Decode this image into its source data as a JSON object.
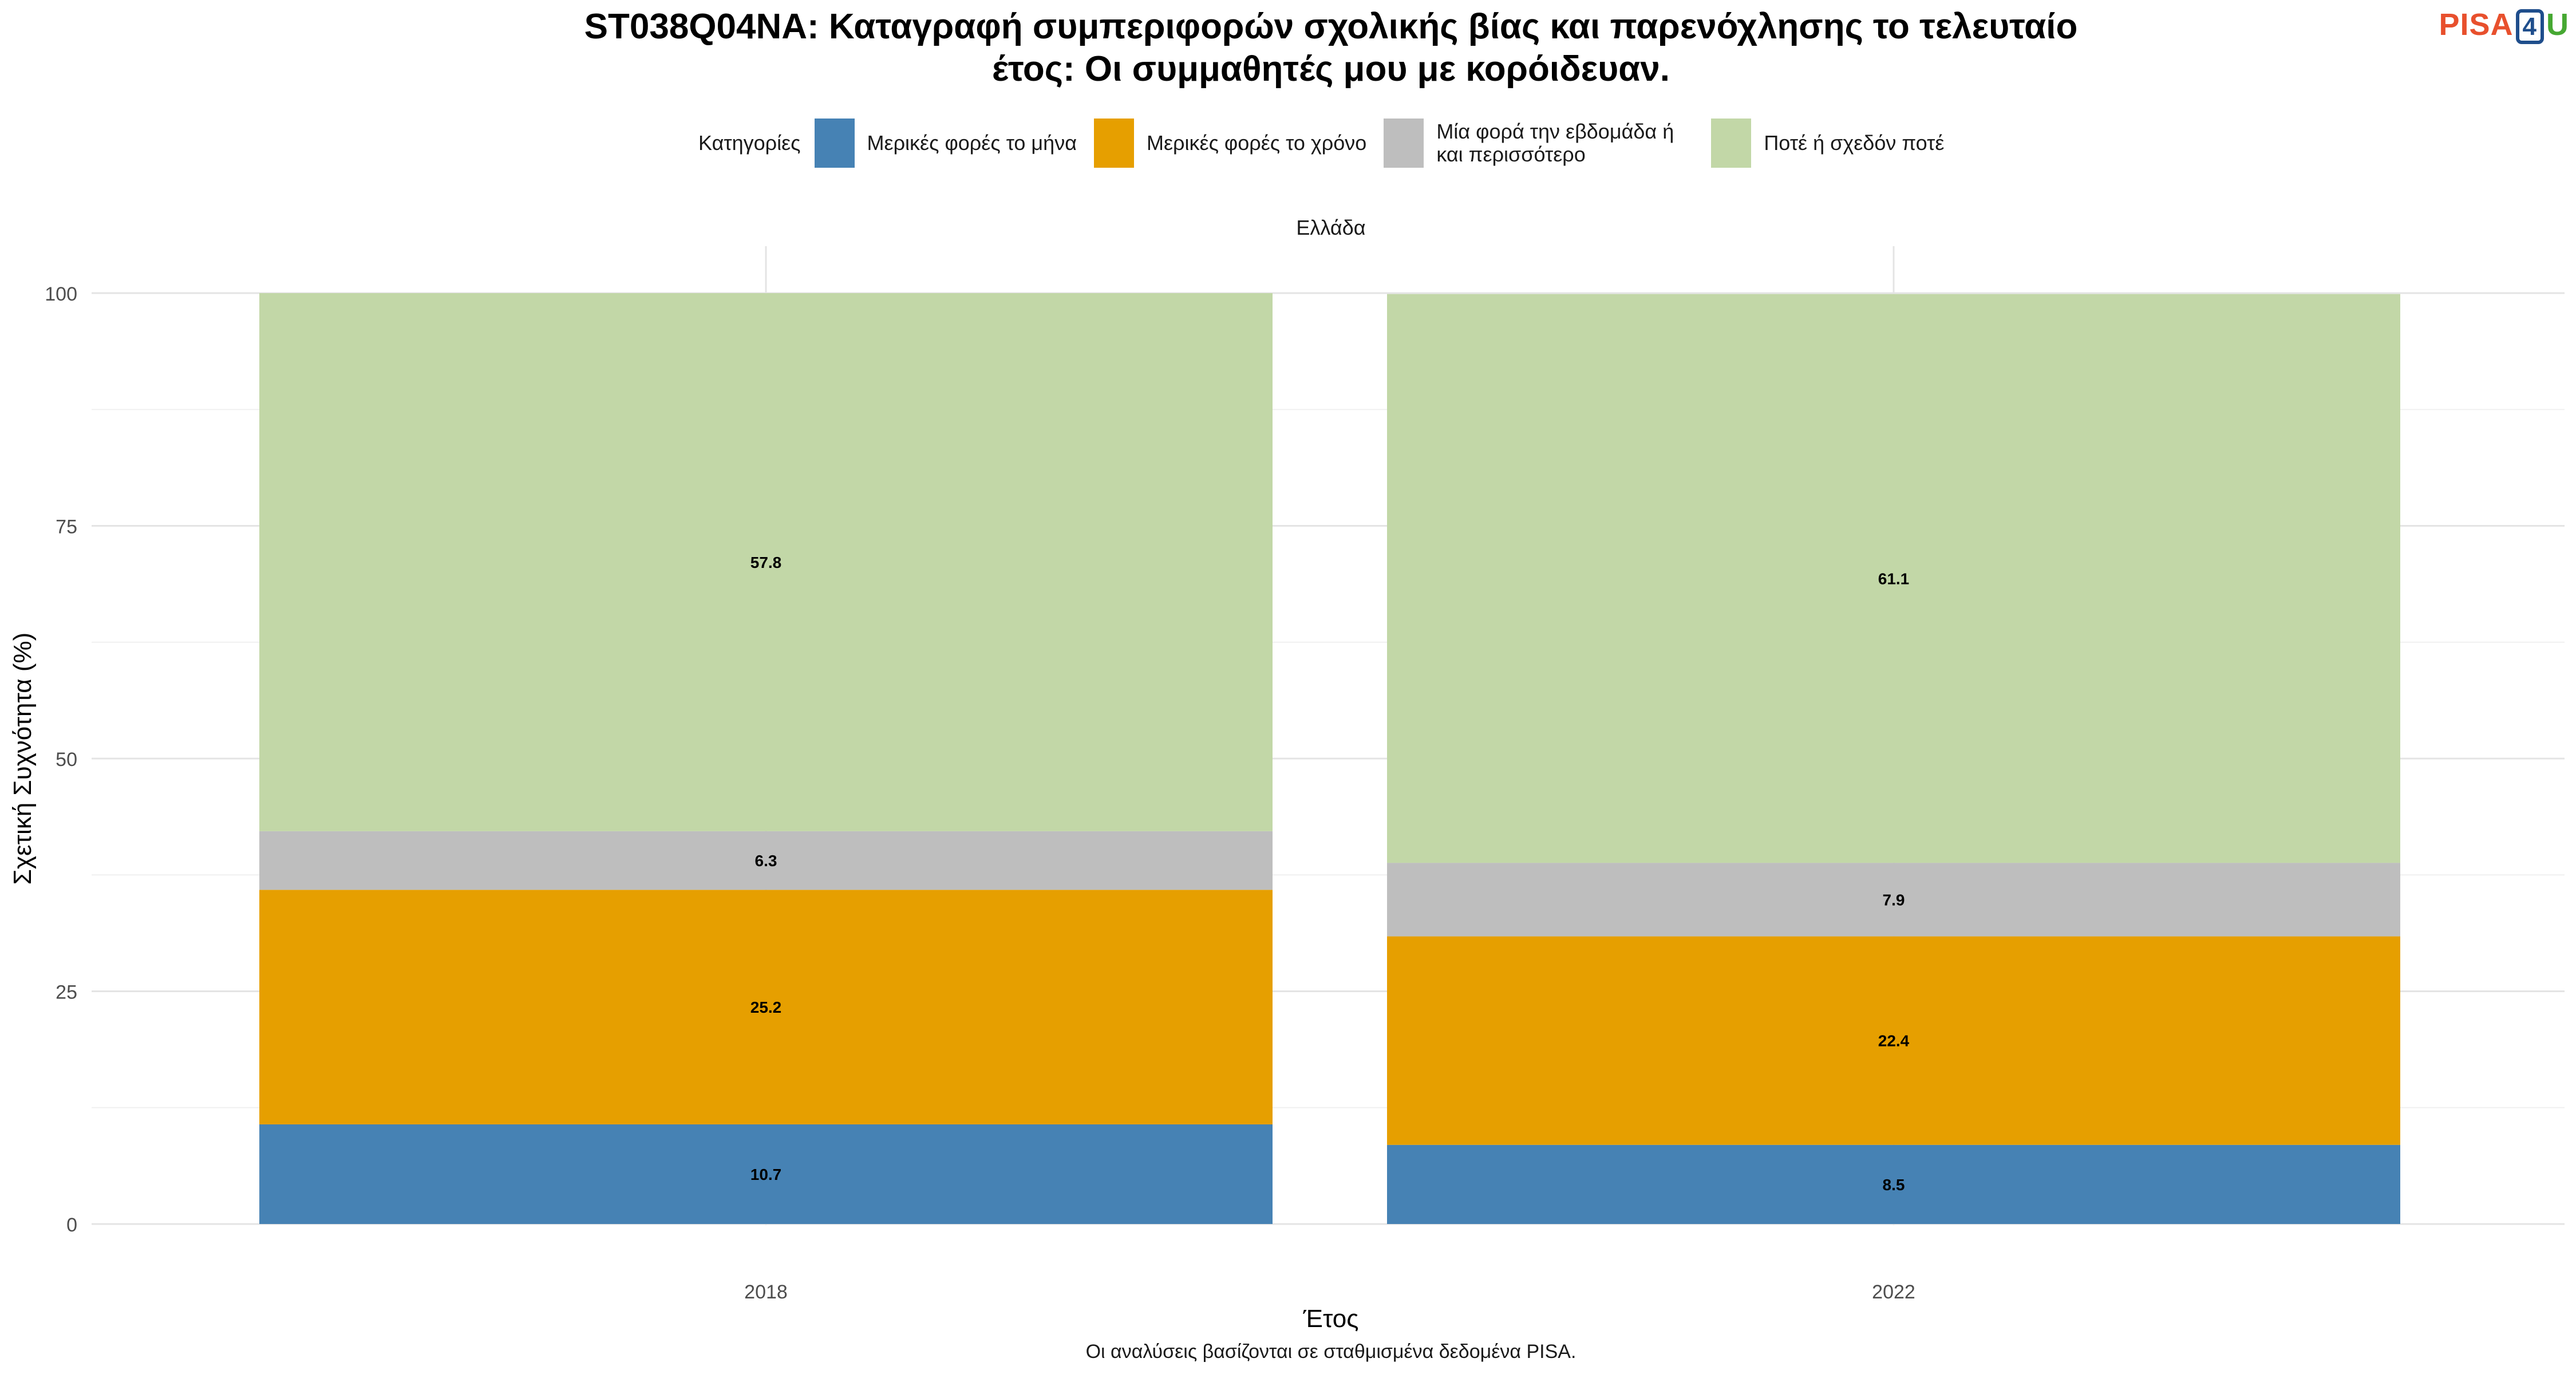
{
  "header": {
    "title_line1": "ST038Q04NA: Καταγραφή συμπεριφορών σχολικής βίας και παρενόχλησης το τελευταίο",
    "title_line2": "έτος: Οι συμμαθητές μου με κορόιδευαν.",
    "logo_pisa": "PISA",
    "logo_four": "4",
    "logo_u": "U"
  },
  "legend": {
    "title": "Κατηγορίες",
    "items": [
      {
        "label": "Μερικές φορές το μήνα",
        "color": "#4682b4"
      },
      {
        "label": "Μερικές φορές το χρόνο",
        "color": "#e69f00"
      },
      {
        "label": "Μία φορά την εβδομάδα ή και περισσότερο",
        "color": "#bebebe"
      },
      {
        "label": "Ποτέ ή σχεδόν ποτέ",
        "color": "#c2d7a7"
      }
    ]
  },
  "facet_label": "Ελλάδα",
  "caption": "Οι αναλύσεις βασίζονται σε σταθμισμένα δεδομένα PISA.",
  "chart_data": {
    "type": "bar",
    "stacked": true,
    "categories": [
      "2018",
      "2022"
    ],
    "series": [
      {
        "name": "Μερικές φορές το μήνα",
        "color": "#4682b4",
        "values": [
          10.7,
          8.5
        ]
      },
      {
        "name": "Μερικές φορές το χρόνο",
        "color": "#e69f00",
        "values": [
          25.2,
          22.4
        ]
      },
      {
        "name": "Μία φορά την εβδομάδα ή και περισσότερο",
        "color": "#bebebe",
        "values": [
          6.3,
          7.9
        ]
      },
      {
        "name": "Ποτέ ή σχεδόν ποτέ",
        "color": "#c2d7a7",
        "values": [
          57.8,
          61.1
        ]
      }
    ],
    "xlabel": "Έτος",
    "ylabel": "Σχετική Συχνότητα (%)",
    "ylim": [
      0,
      100
    ],
    "yticks": [
      0,
      25,
      50,
      75,
      100
    ],
    "grid": true,
    "legend_position": "top"
  }
}
